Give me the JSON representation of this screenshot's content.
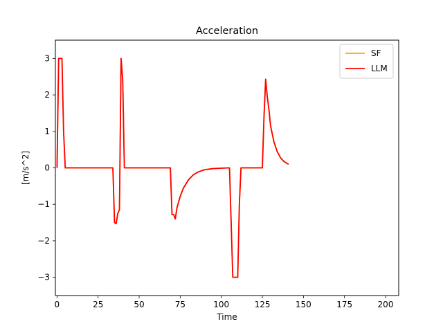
{
  "chart_data": {
    "type": "line",
    "title": "Acceleration",
    "xlabel": "Time",
    "ylabel": "[m/s^2]",
    "xlim": [
      -1,
      208
    ],
    "ylim": [
      -3.5,
      3.5
    ],
    "xticks": [
      0,
      25,
      50,
      75,
      100,
      125,
      150,
      175,
      200
    ],
    "yticks": [
      -3,
      -2,
      -1,
      0,
      1,
      2,
      3
    ],
    "grid": false,
    "legend_position": "upper-right",
    "series": [
      {
        "name": "SF",
        "color": "#ffa500",
        "x": [
          0,
          1,
          2,
          3,
          4,
          5,
          34,
          35,
          36,
          37,
          38,
          39,
          40,
          41,
          69,
          70,
          71,
          72,
          73,
          75,
          77,
          80,
          83,
          86,
          90,
          95,
          100,
          105,
          106,
          107,
          108,
          109,
          110,
          111,
          112,
          125,
          126,
          127,
          128,
          129,
          130,
          132,
          134,
          136,
          138,
          140,
          141
        ],
        "y": [
          0,
          3.0,
          3.0,
          3.0,
          1.0,
          0,
          0,
          -1.5,
          -1.53,
          -1.25,
          -1.15,
          3.0,
          2.4,
          0,
          0,
          -1.28,
          -1.28,
          -1.4,
          -1.1,
          -0.78,
          -0.55,
          -0.33,
          -0.19,
          -0.11,
          -0.05,
          -0.02,
          -0.01,
          0,
          -1.5,
          -3.0,
          -3.0,
          -3.0,
          -3.0,
          -1.0,
          0,
          0,
          1.4,
          2.43,
          1.95,
          1.6,
          1.15,
          0.72,
          0.45,
          0.28,
          0.18,
          0.12,
          0.1
        ]
      },
      {
        "name": "LLM",
        "color": "#ff0000",
        "x": [
          0,
          1,
          2,
          3,
          4,
          5,
          34,
          35,
          36,
          37,
          38,
          39,
          40,
          41,
          69,
          70,
          71,
          72,
          73,
          75,
          77,
          80,
          83,
          86,
          90,
          95,
          100,
          105,
          106,
          107,
          108,
          109,
          110,
          111,
          112,
          125,
          126,
          127,
          128,
          129,
          130,
          132,
          134,
          136,
          138,
          140,
          141
        ],
        "y": [
          0,
          3.0,
          3.0,
          3.0,
          1.0,
          0,
          0,
          -1.5,
          -1.53,
          -1.25,
          -1.15,
          3.0,
          2.4,
          0,
          0,
          -1.28,
          -1.28,
          -1.4,
          -1.1,
          -0.78,
          -0.55,
          -0.33,
          -0.19,
          -0.11,
          -0.05,
          -0.02,
          -0.01,
          0,
          -1.5,
          -3.0,
          -3.0,
          -3.0,
          -3.0,
          -1.0,
          0,
          0,
          1.4,
          2.43,
          1.95,
          1.6,
          1.15,
          0.72,
          0.45,
          0.28,
          0.18,
          0.12,
          0.1
        ]
      }
    ]
  }
}
